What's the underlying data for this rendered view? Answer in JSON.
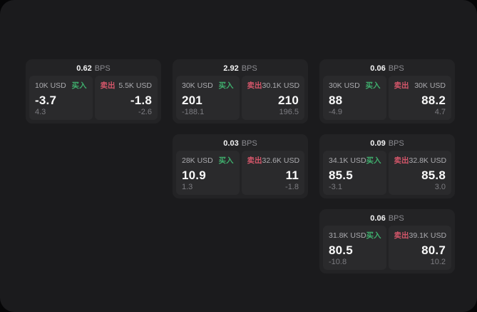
{
  "labels": {
    "bps": "BPS",
    "buy": "买入",
    "sell": "卖出"
  },
  "colors": {
    "background_outer": "#060607",
    "panel": "#1b1b1d",
    "card": "#232325",
    "subpanel": "#2a2a2c",
    "buy_green": "#3fae6d",
    "sell_red": "#d4566a",
    "value_white": "#fafafa",
    "label_gray": "#ababaf",
    "dim_gray": "#7c7c81"
  },
  "cards": [
    {
      "bps": "0.62",
      "col": 1,
      "row": 1,
      "buy": {
        "usd": "10K USD",
        "value": "-3.7",
        "sub": "4.3"
      },
      "sell": {
        "usd": "5.5K USD",
        "value": "-1.8",
        "sub": "-2.6"
      }
    },
    {
      "bps": "2.92",
      "col": 2,
      "row": 1,
      "buy": {
        "usd": "30K USD",
        "value": "201",
        "sub": "-188.1"
      },
      "sell": {
        "usd": "30.1K USD",
        "value": "210",
        "sub": "196.5"
      }
    },
    {
      "bps": "0.06",
      "col": 3,
      "row": 1,
      "buy": {
        "usd": "30K USD",
        "value": "88",
        "sub": "-4.9"
      },
      "sell": {
        "usd": "30K USD",
        "value": "88.2",
        "sub": "4.7"
      }
    },
    {
      "bps": "0.03",
      "col": 2,
      "row": 2,
      "buy": {
        "usd": "28K USD",
        "value": "10.9",
        "sub": "1.3"
      },
      "sell": {
        "usd": "32.6K USD",
        "value": "11",
        "sub": "-1.8"
      }
    },
    {
      "bps": "0.09",
      "col": 3,
      "row": 2,
      "buy": {
        "usd": "34.1K USD",
        "value": "85.5",
        "sub": "-3.1"
      },
      "sell": {
        "usd": "32.8K USD",
        "value": "85.8",
        "sub": "3.0"
      }
    },
    {
      "bps": "0.06",
      "col": 3,
      "row": 3,
      "buy": {
        "usd": "31.8K USD",
        "value": "80.5",
        "sub": "-10.8"
      },
      "sell": {
        "usd": "39.1K USD",
        "value": "80.7",
        "sub": "10.2"
      }
    }
  ]
}
